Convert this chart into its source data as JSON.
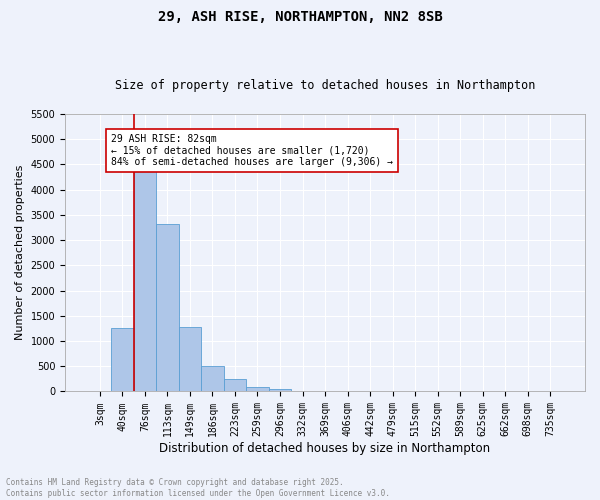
{
  "title": "29, ASH RISE, NORTHAMPTON, NN2 8SB",
  "subtitle": "Size of property relative to detached houses in Northampton",
  "xlabel": "Distribution of detached houses by size in Northampton",
  "ylabel": "Number of detached properties",
  "bar_color": "#aec6e8",
  "bar_edge_color": "#5a9fd4",
  "background_color": "#eef2fb",
  "grid_color": "#ffffff",
  "categories": [
    "3sqm",
    "40sqm",
    "76sqm",
    "113sqm",
    "149sqm",
    "186sqm",
    "223sqm",
    "259sqm",
    "296sqm",
    "332sqm",
    "369sqm",
    "406sqm",
    "442sqm",
    "479sqm",
    "515sqm",
    "552sqm",
    "589sqm",
    "625sqm",
    "662sqm",
    "698sqm",
    "735sqm"
  ],
  "values": [
    0,
    1260,
    4430,
    3310,
    1280,
    500,
    245,
    95,
    50,
    15,
    10,
    5,
    0,
    0,
    0,
    0,
    0,
    0,
    0,
    0,
    0
  ],
  "ylim": [
    0,
    5500
  ],
  "yticks": [
    0,
    500,
    1000,
    1500,
    2000,
    2500,
    3000,
    3500,
    4000,
    4500,
    5000,
    5500
  ],
  "vline_color": "#cc0000",
  "vline_index": 2,
  "annotation_title": "29 ASH RISE: 82sqm",
  "annotation_line1": "← 15% of detached houses are smaller (1,720)",
  "annotation_line2": "84% of semi-detached houses are larger (9,306) →",
  "annotation_box_color": "#ffffff",
  "annotation_box_edge": "#cc0000",
  "footer_line1": "Contains HM Land Registry data © Crown copyright and database right 2025.",
  "footer_line2": "Contains public sector information licensed under the Open Government Licence v3.0.",
  "footer_color": "#888888",
  "title_fontsize": 10,
  "subtitle_fontsize": 8.5,
  "ylabel_fontsize": 8,
  "xlabel_fontsize": 8.5,
  "tick_fontsize": 7,
  "annotation_fontsize": 7,
  "footer_fontsize": 5.5
}
